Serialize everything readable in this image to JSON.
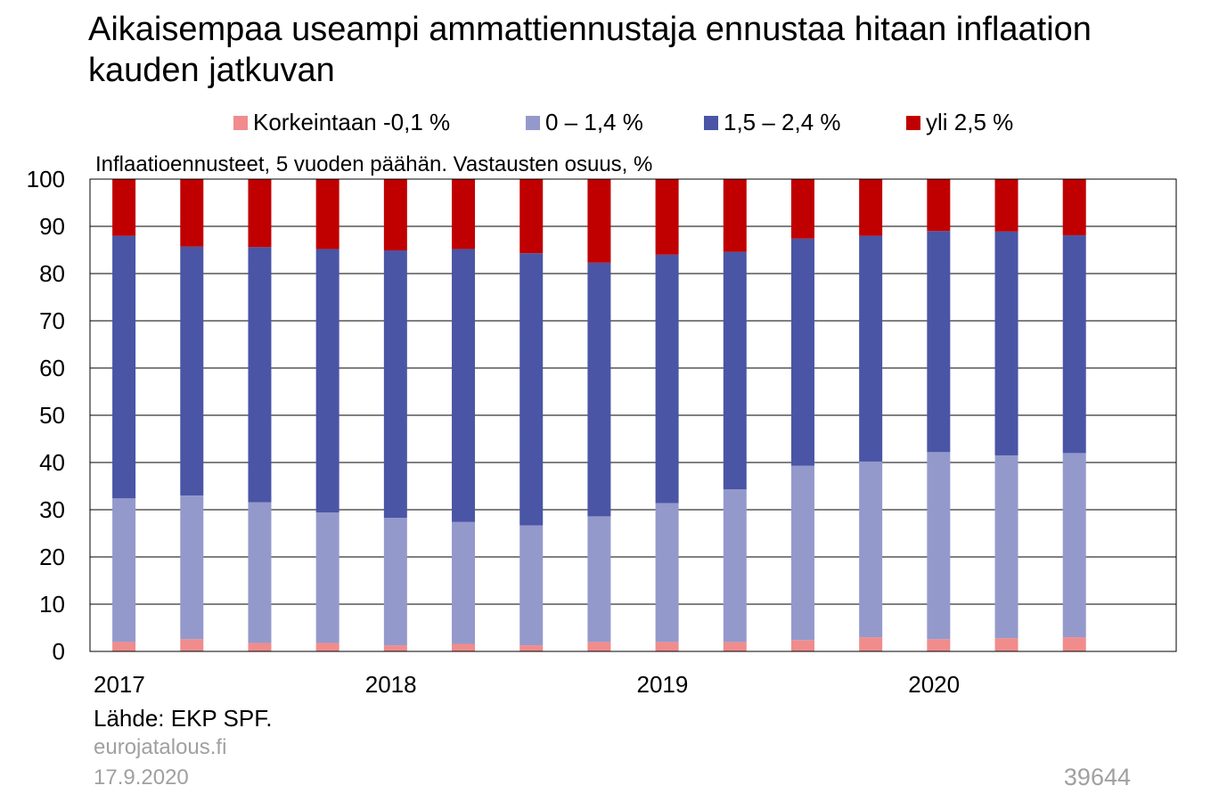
{
  "chart_data": {
    "type": "bar",
    "stacked": true,
    "title": "Aikaisempaa useampi ammattiennustaja ennustaa hitaan inflaation kauden jatkuvan",
    "subtitle": "Inflaatioennusteet, 5 vuoden päähän. Vastausten osuus, %",
    "xlabel": "",
    "ylabel": "",
    "ylim": [
      0,
      100
    ],
    "yticks": [
      "0",
      "10",
      "20",
      "30",
      "40",
      "50",
      "60",
      "70",
      "80",
      "90",
      "100"
    ],
    "xtick_labels": [
      "2017",
      "2018",
      "2019",
      "2020"
    ],
    "grid": true,
    "legend_position": "top",
    "categories": [
      "2017Q1",
      "2017Q2",
      "2017Q3",
      "2017Q4",
      "2018Q1",
      "2018Q2",
      "2018Q3",
      "2018Q4",
      "2019Q1",
      "2019Q2",
      "2019Q3",
      "2019Q4",
      "2020Q1",
      "2020Q2",
      "2020Q3",
      "2020Q4"
    ],
    "series": [
      {
        "name": "Korkeintaan -0,1 %",
        "color": "#f08c8c",
        "values": [
          2.0,
          2.6,
          1.8,
          1.8,
          1.3,
          1.6,
          1.3,
          2.0,
          2.0,
          2.0,
          2.4,
          3.0,
          2.6,
          2.8,
          3.0,
          null
        ]
      },
      {
        "name": "0 – 1,4 %",
        "color": "#9499cc",
        "values": [
          30.4,
          30.4,
          29.8,
          27.6,
          27.0,
          25.8,
          25.4,
          26.6,
          29.4,
          32.3,
          36.9,
          37.2,
          39.6,
          38.7,
          39.0,
          null
        ]
      },
      {
        "name": "1,5 – 2,4 %",
        "color": "#4a55a5",
        "values": [
          55.6,
          52.7,
          54.0,
          55.8,
          56.6,
          57.8,
          57.6,
          53.7,
          52.6,
          50.3,
          48.1,
          47.8,
          46.8,
          47.4,
          46.1,
          null
        ]
      },
      {
        "name": "yli 2,5 %",
        "color": "#c00000",
        "values": [
          12.0,
          14.3,
          14.4,
          14.8,
          15.1,
          14.8,
          15.7,
          17.7,
          16.0,
          15.4,
          12.6,
          12.0,
          11.0,
          11.1,
          11.9,
          null
        ]
      }
    ]
  },
  "footer": {
    "source": "Lähde: EKP SPF.",
    "site": "eurojatalous.fi",
    "date": "17.9.2020",
    "id": "39644"
  }
}
